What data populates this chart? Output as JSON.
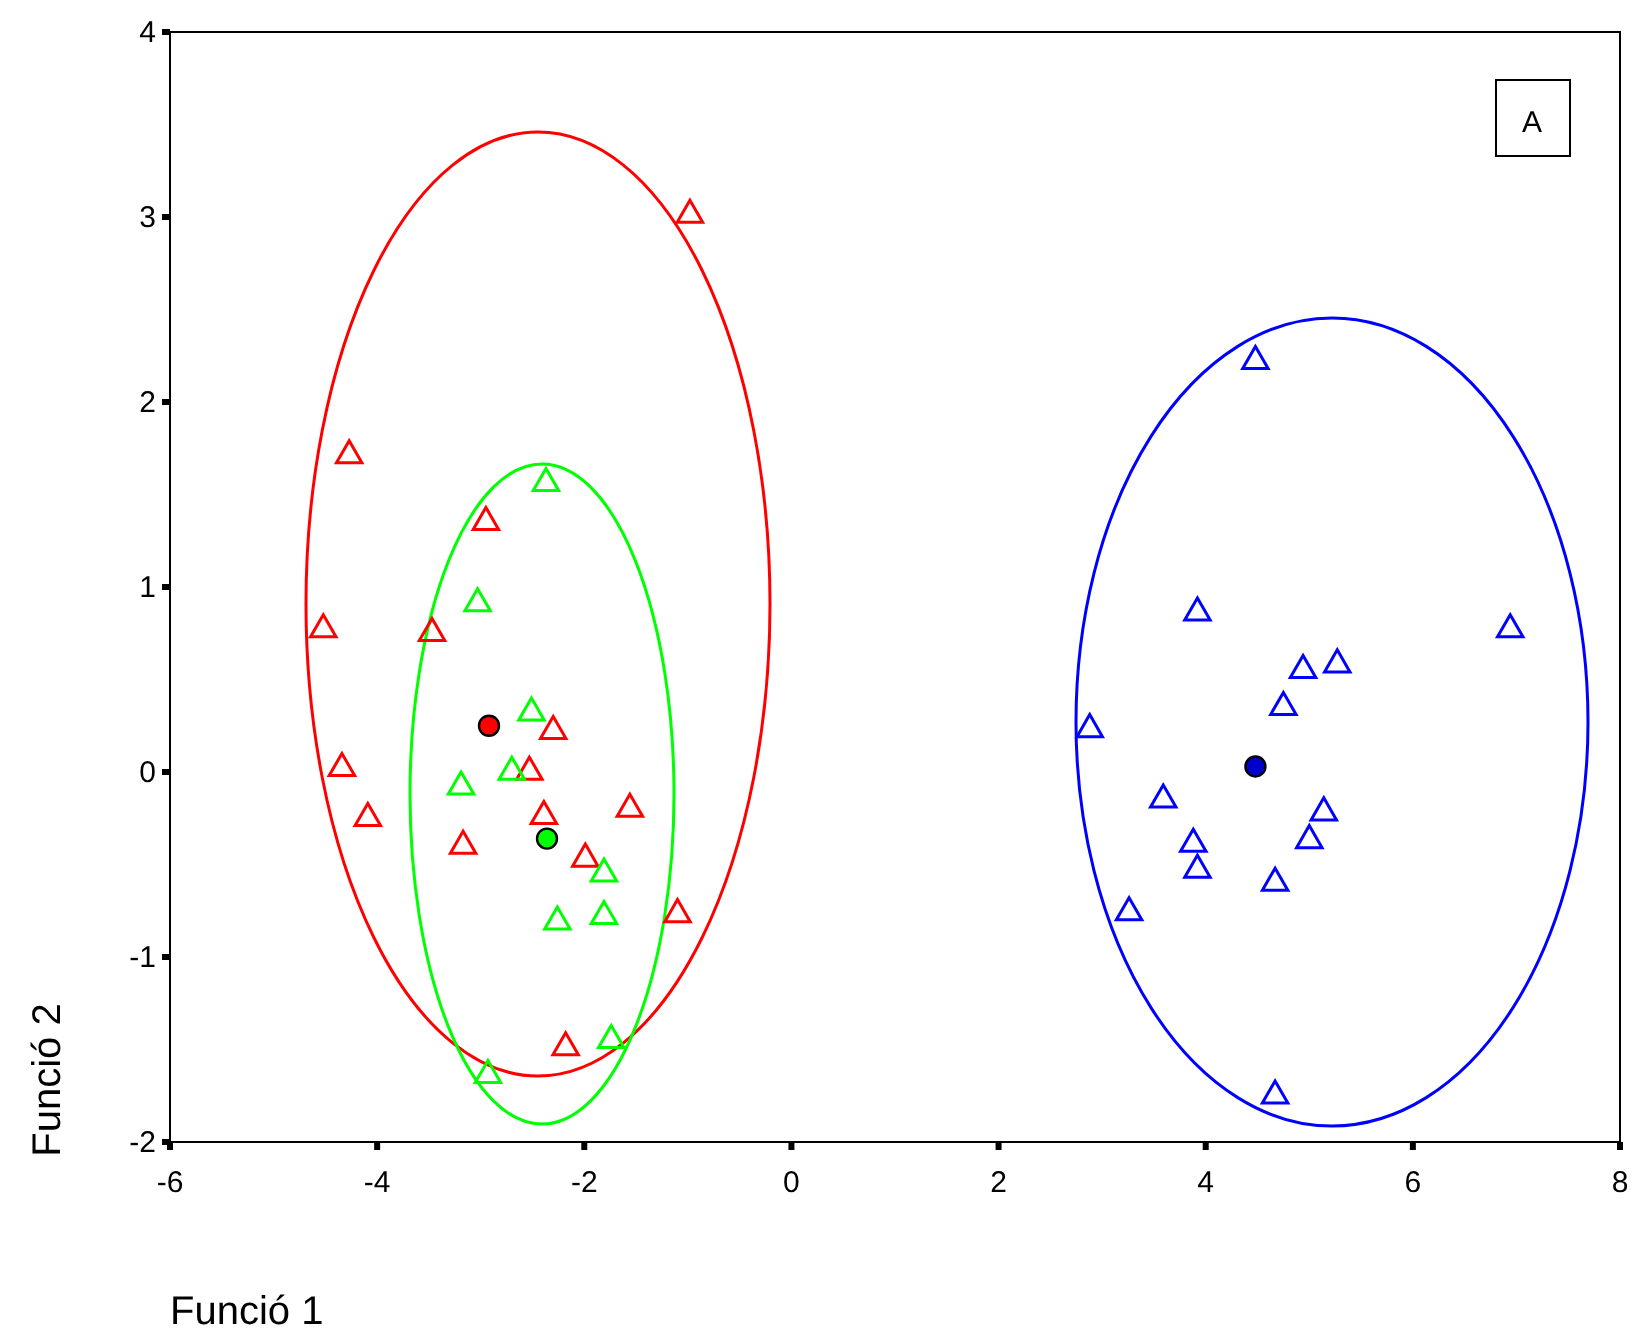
{
  "chart_data": {
    "type": "scatter",
    "xlabel": "Funció 1",
    "ylabel": "Funció 2",
    "xlim": [
      -6,
      8
    ],
    "ylim": [
      -2,
      4
    ],
    "xticks": [
      -6,
      -4,
      -2,
      0,
      2,
      4,
      6,
      8
    ],
    "yticks": [
      -2,
      -1,
      0,
      1,
      2,
      3,
      4
    ],
    "annotations": [
      "A"
    ],
    "series": [
      {
        "marker": "triangle",
        "color": "#ff0000",
        "x": [
          -0.98,
          -4.27,
          -2.95,
          -4.52,
          -3.47,
          -2.3,
          -4.34,
          -4.09,
          -2.53,
          -2.39,
          -1.56,
          -3.17,
          -1.99,
          -1.1,
          -2.18
        ],
        "values": [
          3.0,
          1.7,
          1.34,
          0.76,
          0.74,
          0.21,
          0.01,
          -0.26,
          -0.01,
          -0.25,
          -0.21,
          -0.41,
          -0.48,
          -0.78,
          -1.5
        ]
      },
      {
        "marker": "triangle",
        "color": "#00ff00",
        "x": [
          -2.37,
          -3.03,
          -2.51,
          -2.7,
          -3.19,
          -1.81,
          -1.81,
          -2.26,
          -1.74,
          -2.93
        ],
        "values": [
          1.55,
          0.9,
          0.31,
          -0.01,
          -0.09,
          -0.56,
          -0.79,
          -0.82,
          -1.46,
          -1.65
        ]
      },
      {
        "marker": "triangle",
        "color": "#0000ff",
        "x": [
          4.48,
          3.92,
          2.88,
          4.94,
          5.27,
          4.75,
          6.94,
          3.59,
          3.88,
          3.92,
          3.26,
          5.0,
          5.14,
          4.67,
          4.67
        ],
        "values": [
          2.21,
          0.85,
          0.22,
          0.54,
          0.57,
          0.34,
          0.76,
          -0.16,
          -0.4,
          -0.54,
          -0.77,
          -0.38,
          -0.23,
          -0.61,
          -1.76
        ]
      },
      {
        "marker": "circle",
        "color": "#ff0000",
        "x": [
          -2.92
        ],
        "values": [
          0.25
        ]
      },
      {
        "marker": "circle",
        "color": "#00ff00",
        "x": [
          -2.36
        ],
        "values": [
          -0.36
        ]
      },
      {
        "marker": "circle",
        "color": "#0000cc",
        "x": [
          4.48
        ],
        "values": [
          0.03
        ]
      }
    ]
  }
}
